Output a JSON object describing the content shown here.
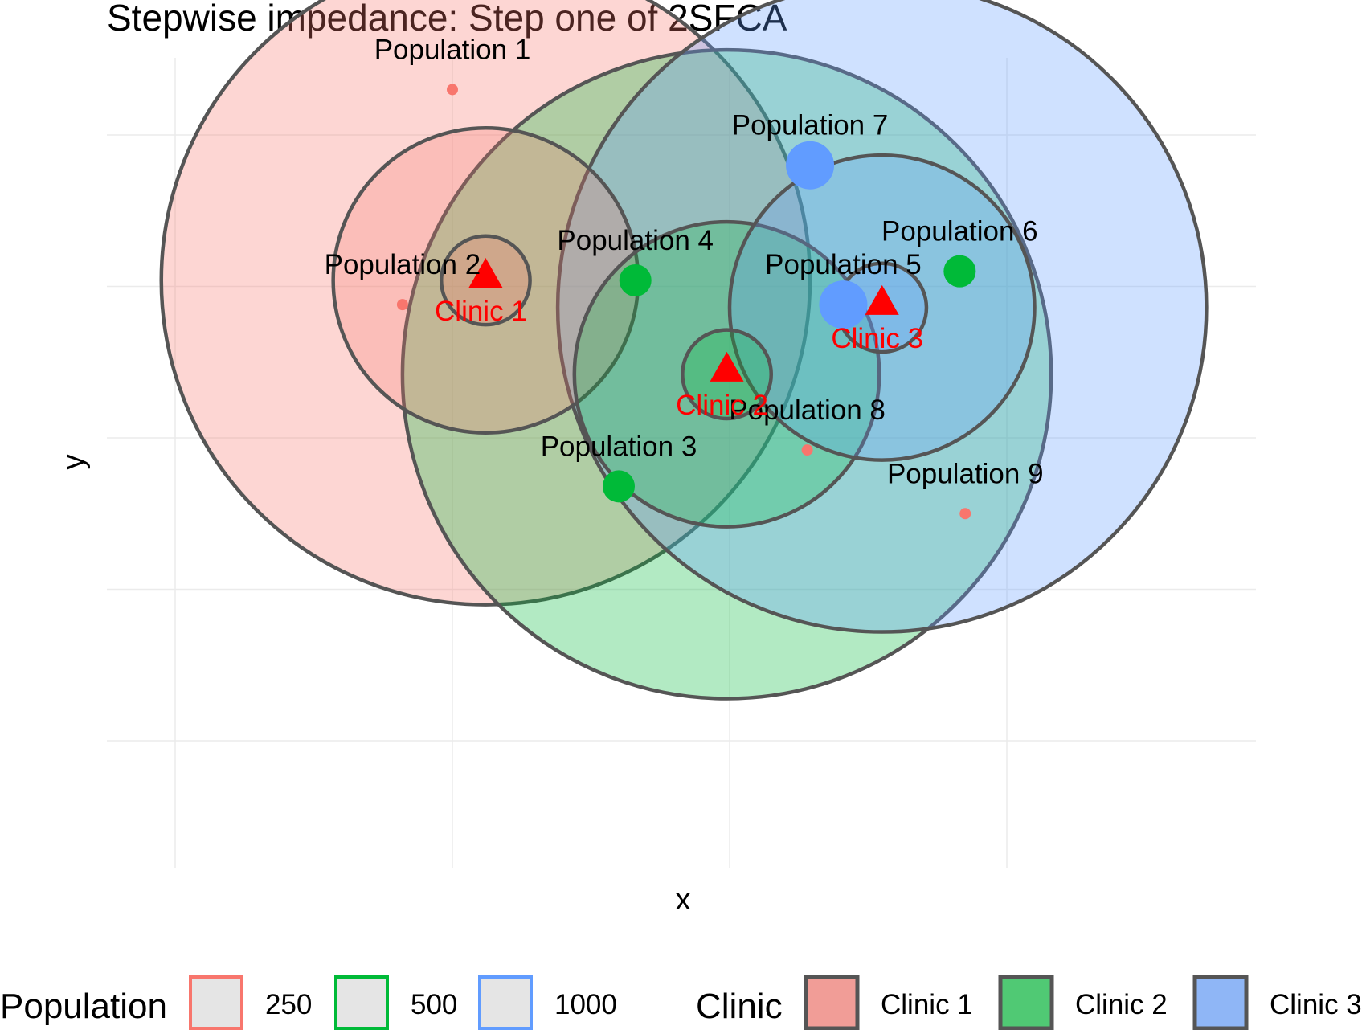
{
  "chart_data": {
    "type": "scatter",
    "title": "Stepwise impedance: Step one of 2SFCA",
    "xlabel": "x",
    "ylabel": "y",
    "grid": true,
    "legend_position": "bottom",
    "clinics": [
      {
        "name": "Clinic 1",
        "x": 0.12,
        "y": 0.52,
        "fill": "#F8766D",
        "radii": [
          0.16,
          0.55,
          1.17
        ]
      },
      {
        "name": "Clinic 2",
        "x": 0.99,
        "y": 0.21,
        "fill": "#00BA38",
        "radii": [
          0.16,
          0.55,
          1.17
        ]
      },
      {
        "name": "Clinic 3",
        "x": 1.55,
        "y": 0.43,
        "fill": "#619CFF",
        "radii": [
          0.16,
          0.55,
          1.17
        ]
      }
    ],
    "populations": [
      {
        "name": "Population 1",
        "x": 0.0,
        "y": 1.15,
        "size": 250
      },
      {
        "name": "Population 2",
        "x": -0.18,
        "y": 0.44,
        "size": 250
      },
      {
        "name": "Population 3",
        "x": 0.6,
        "y": -0.16,
        "size": 500
      },
      {
        "name": "Population 4",
        "x": 0.66,
        "y": 0.52,
        "size": 500
      },
      {
        "name": "Population 5",
        "x": 1.41,
        "y": 0.44,
        "size": 1000
      },
      {
        "name": "Population 6",
        "x": 1.83,
        "y": 0.55,
        "size": 500
      },
      {
        "name": "Population 7",
        "x": 1.29,
        "y": 0.9,
        "size": 1000
      },
      {
        "name": "Population 8",
        "x": 1.28,
        "y": -0.04,
        "size": 250
      },
      {
        "name": "Population 9",
        "x": 1.85,
        "y": -0.25,
        "size": 250
      }
    ],
    "x_breaks": [
      -1,
      0,
      1,
      2
    ],
    "y_breaks": [
      -1,
      -0.5,
      0,
      0.5,
      1,
      1.5
    ],
    "legend": {
      "population": {
        "title": "Population",
        "entries": [
          {
            "label": "250",
            "color": "#F8766D"
          },
          {
            "label": "500",
            "color": "#00BA38"
          },
          {
            "label": "1000",
            "color": "#619CFF"
          }
        ]
      },
      "clinic": {
        "title": "Clinic",
        "entries": [
          {
            "label": "Clinic 1",
            "fill": "#F8766D"
          },
          {
            "label": "Clinic 2",
            "fill": "#00BA38"
          },
          {
            "label": "Clinic 3",
            "fill": "#619CFF"
          }
        ]
      }
    }
  },
  "colors": {
    "clinic_marker": "#FF0000",
    "circle_outline": "#555555",
    "grid": "#EBEBEB",
    "legend_key_fill": "#E5E5E5"
  }
}
